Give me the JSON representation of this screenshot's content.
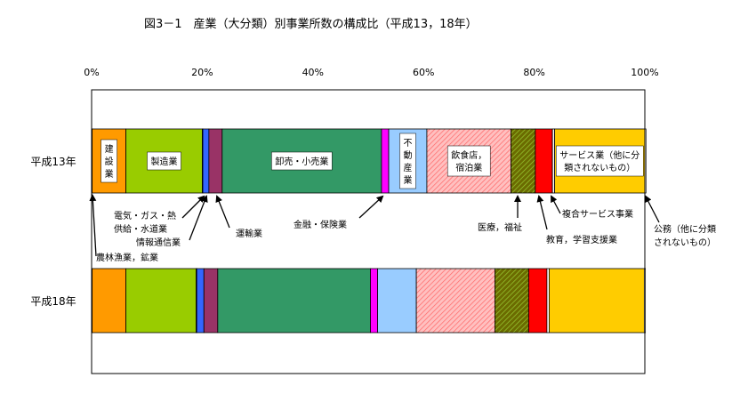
{
  "chart_data": {
    "type": "bar",
    "orientation": "horizontal",
    "stacked": "percent",
    "title": "図3－1　産業（大分類）別事業所数の構成比（平成13，18年）",
    "x_tick_labels": [
      "0%",
      "20%",
      "40%",
      "60%",
      "80%",
      "100%"
    ],
    "xlim": [
      0,
      100
    ],
    "categories": [
      "平成13年",
      "平成18年"
    ],
    "series": [
      {
        "name": "農林漁業，鉱業",
        "color": "#ffffff",
        "values": [
          0.1,
          0.1
        ]
      },
      {
        "name": "建設業",
        "color": "#ff9a00",
        "values": [
          6.1,
          6.1
        ]
      },
      {
        "name": "製造業",
        "color": "#99cc00",
        "values": [
          13.8,
          12.7
        ]
      },
      {
        "name": "電気・ガス・熱供給・水道業",
        "color": "#ffffff",
        "values": [
          0.1,
          0.1
        ]
      },
      {
        "name": "情報通信業",
        "color": "#3366ff",
        "values": [
          1.1,
          1.3
        ]
      },
      {
        "name": "運輸業",
        "color": "#993366",
        "values": [
          2.4,
          2.5
        ]
      },
      {
        "name": "卸売・小売業",
        "color": "#339966",
        "values": [
          28.8,
          27.6
        ]
      },
      {
        "name": "金融・保険業",
        "color": "#ff00ff",
        "values": [
          1.3,
          1.3
        ]
      },
      {
        "name": "不動産業",
        "color": "#99ccff",
        "values": [
          6.9,
          7.0
        ]
      },
      {
        "name": "飲食店，宿泊業",
        "color": "#ff9999",
        "values": [
          15.2,
          14.2
        ]
      },
      {
        "name": "医療，福祉",
        "color": "#808000",
        "values": [
          4.4,
          6.1
        ]
      },
      {
        "name": "教育，学習支援業",
        "color": "#ff0000",
        "values": [
          3.1,
          3.3
        ]
      },
      {
        "name": "複合サービス事業",
        "color": "#ffffff",
        "values": [
          0.4,
          0.4
        ]
      },
      {
        "name": "サービス業（他に分類されないもの）",
        "color": "#ffcc00",
        "values": [
          16.3,
          17.2
        ]
      },
      {
        "name": "公務（他に分類されないもの）",
        "color": "#ffffff",
        "values": [
          0.2,
          0.2
        ]
      }
    ],
    "in_bar_labels": [
      {
        "series": 1,
        "text": "建設業",
        "vertical": true
      },
      {
        "series": 2,
        "text": "製造業"
      },
      {
        "series": 6,
        "text": "卸売・小売業"
      },
      {
        "series": 8,
        "text": "不動産業",
        "vertical": true
      },
      {
        "series": 9,
        "text": "飲食店，宿泊業",
        "wrap": 4
      },
      {
        "series": 13,
        "text": "サービス業（他に分類されないもの）",
        "wrap": 9
      }
    ],
    "callouts": [
      {
        "series": 0,
        "lines": [
          "農林漁業，鉱業"
        ],
        "arrow_from": [
          108,
          288
        ],
        "arrow_to": [
          104,
          220
        ],
        "text_at": [
          108,
          293
        ]
      },
      {
        "series": 3,
        "lines": [
          "電気・ガス・熱",
          "供給・水道業"
        ],
        "arrow_from": [
          205,
          245
        ],
        "arrow_to": [
          229,
          221
        ],
        "text_at": [
          128,
          246
        ]
      },
      {
        "series": 4,
        "lines": [
          "情報通信業"
        ],
        "arrow_from": [
          213,
          270
        ],
        "arrow_to": [
          232,
          221
        ],
        "text_at": [
          153,
          276
        ]
      },
      {
        "series": 5,
        "lines": [
          "運輸業"
        ],
        "arrow_from": [
          258,
          256
        ],
        "arrow_to": [
          244,
          221
        ],
        "text_at": [
          265,
          266
        ]
      },
      {
        "series": 7,
        "lines": [
          "金融・保険業"
        ],
        "arrow_from": [
          404,
          245
        ],
        "arrow_to": [
          430,
          221
        ],
        "text_at": [
          330,
          256
        ]
      },
      {
        "series": 10,
        "lines": [
          "医療，福祉"
        ],
        "arrow_from": [
          582,
          245
        ],
        "arrow_to": [
          582,
          221
        ],
        "text_at": [
          537,
          259
        ]
      },
      {
        "series": 11,
        "lines": [
          "教育，学習支援業"
        ],
        "arrow_from": [
          615,
          258
        ],
        "arrow_to": [
          606,
          221
        ],
        "text_at": [
          614,
          273
        ]
      },
      {
        "series": 12,
        "lines": [
          "複合サービス事業"
        ],
        "arrow_from": [
          630,
          240
        ],
        "arrow_to": [
          620,
          221
        ],
        "text_at": [
          632,
          244
        ]
      },
      {
        "series": 14,
        "lines": [
          "公務（他に分類",
          "されないもの）"
        ],
        "arrow_from": [
          741,
          250
        ],
        "arrow_to": [
          726,
          221
        ],
        "text_at": [
          735,
          261
        ]
      }
    ],
    "hatched_series": [
      9,
      10
    ],
    "grid": false,
    "legend": "none"
  }
}
